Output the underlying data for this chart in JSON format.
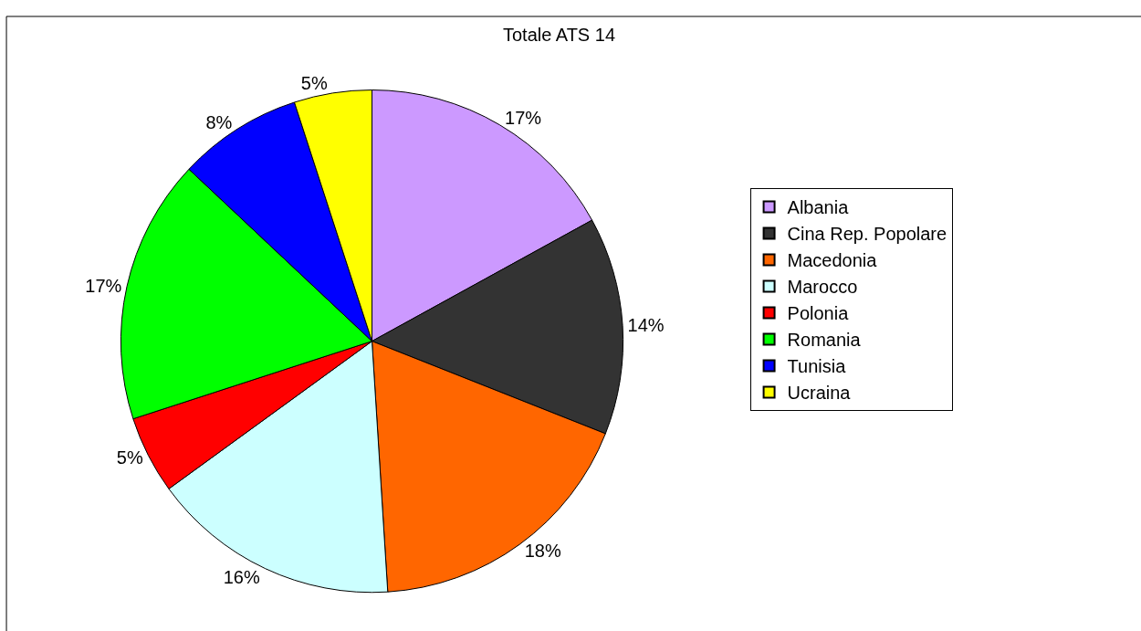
{
  "chart_data": {
    "type": "pie",
    "title": "Totale ATS 14",
    "categories": [
      "Albania",
      "Cina Rep. Popolare",
      "Macedonia",
      "Marocco",
      "Polonia",
      "Romania",
      "Tunisia",
      "Ucraina"
    ],
    "values": [
      17,
      14,
      18,
      16,
      5,
      17,
      8,
      5
    ],
    "value_labels": [
      "17%",
      "14%",
      "18%",
      "16%",
      "5%",
      "17%",
      "8%",
      "5%"
    ],
    "colors": [
      "#cc99ff",
      "#333333",
      "#ff6600",
      "#ccffff",
      "#ff0000",
      "#00ff00",
      "#0000ff",
      "#ffff00"
    ],
    "legend": "right"
  }
}
